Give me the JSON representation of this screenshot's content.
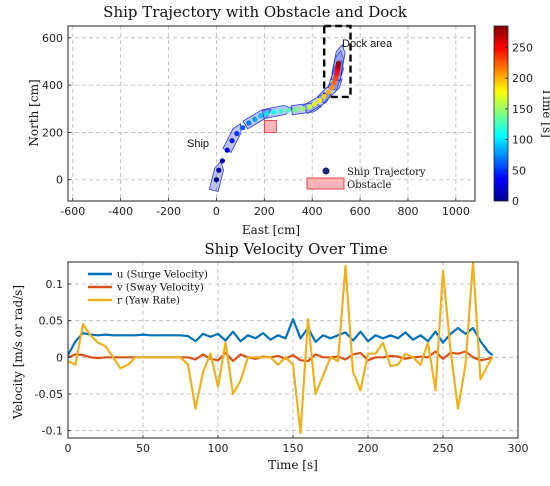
{
  "chart_data": [
    {
      "type": "scatter",
      "title": "Ship Trajectory with Obstacle and Dock",
      "xlabel": "East [cm]",
      "ylabel": "North [cm]",
      "xlim": [
        -620,
        1080
      ],
      "ylim": [
        -90,
        650
      ],
      "xticks": [
        -600,
        -400,
        -200,
        0,
        200,
        400,
        600,
        800,
        1000
      ],
      "yticks": [
        0,
        200,
        400,
        600
      ],
      "grid": true,
      "legend_position": "bottom-right",
      "legend": {
        "trajectory": "Ship Trajectory",
        "obstacle": "Obstacle"
      },
      "colorbar": {
        "label": "Time [s]",
        "range": [
          0,
          285
        ],
        "ticks": [
          0,
          50,
          100,
          150,
          200,
          250
        ]
      },
      "annotations": {
        "ship": "Ship",
        "dock": "Dock area"
      },
      "obstacle": {
        "x": [
          200,
          250
        ],
        "y": [
          200,
          250
        ]
      },
      "dock": {
        "x": [
          450,
          560
        ],
        "y": [
          350,
          660
        ]
      },
      "trajectory": [
        {
          "t": 0,
          "x": 0,
          "y": 0
        },
        {
          "t": 10,
          "x": 10,
          "y": 40
        },
        {
          "t": 20,
          "x": 25,
          "y": 80
        },
        {
          "t": 30,
          "x": 45,
          "y": 125
        },
        {
          "t": 40,
          "x": 65,
          "y": 165
        },
        {
          "t": 50,
          "x": 85,
          "y": 195
        },
        {
          "t": 60,
          "x": 110,
          "y": 220
        },
        {
          "t": 70,
          "x": 135,
          "y": 240
        },
        {
          "t": 80,
          "x": 160,
          "y": 255
        },
        {
          "t": 90,
          "x": 185,
          "y": 270
        },
        {
          "t": 100,
          "x": 210,
          "y": 280
        },
        {
          "t": 110,
          "x": 240,
          "y": 286
        },
        {
          "t": 120,
          "x": 270,
          "y": 290
        },
        {
          "t": 130,
          "x": 300,
          "y": 293
        },
        {
          "t": 140,
          "x": 330,
          "y": 296
        },
        {
          "t": 150,
          "x": 360,
          "y": 300
        },
        {
          "t": 160,
          "x": 390,
          "y": 308
        },
        {
          "t": 170,
          "x": 410,
          "y": 320
        },
        {
          "t": 180,
          "x": 430,
          "y": 335
        },
        {
          "t": 190,
          "x": 450,
          "y": 352
        },
        {
          "t": 200,
          "x": 468,
          "y": 370
        },
        {
          "t": 210,
          "x": 482,
          "y": 390
        },
        {
          "t": 220,
          "x": 492,
          "y": 410
        },
        {
          "t": 230,
          "x": 498,
          "y": 428
        },
        {
          "t": 240,
          "x": 502,
          "y": 445
        },
        {
          "t": 250,
          "x": 505,
          "y": 460
        },
        {
          "t": 260,
          "x": 507,
          "y": 472
        },
        {
          "t": 270,
          "x": 508,
          "y": 482
        },
        {
          "t": 280,
          "x": 510,
          "y": 492
        }
      ],
      "ship_outlines_at_time": [
        0,
        40,
        80,
        110,
        150,
        170,
        200,
        230,
        255,
        280
      ]
    },
    {
      "type": "line",
      "title": "Ship Velocity Over Time",
      "xlabel": "Time [s]",
      "ylabel": "Velocity [m/s or rad/s]",
      "xlim": [
        0,
        300
      ],
      "ylim": [
        -0.11,
        0.13
      ],
      "xticks": [
        0,
        50,
        100,
        150,
        200,
        250,
        300
      ],
      "yticks": [
        -0.1,
        -0.05,
        0,
        0.05,
        0.1
      ],
      "grid": true,
      "legend_position": "top-left",
      "x": [
        0,
        5,
        10,
        15,
        20,
        25,
        30,
        35,
        40,
        45,
        50,
        55,
        60,
        65,
        70,
        75,
        80,
        85,
        90,
        95,
        100,
        105,
        110,
        115,
        120,
        125,
        130,
        135,
        140,
        145,
        150,
        155,
        160,
        165,
        170,
        175,
        180,
        185,
        190,
        195,
        200,
        205,
        210,
        215,
        220,
        225,
        230,
        235,
        240,
        245,
        250,
        255,
        260,
        265,
        270,
        275,
        280,
        283
      ],
      "series": [
        {
          "name": "u (Surge Velocity)",
          "color": "#0072bd",
          "values": [
            0.003,
            0.022,
            0.033,
            0.031,
            0.03,
            0.031,
            0.03,
            0.03,
            0.03,
            0.03,
            0.031,
            0.03,
            0.03,
            0.03,
            0.03,
            0.03,
            0.029,
            0.022,
            0.032,
            0.028,
            0.032,
            0.023,
            0.035,
            0.022,
            0.03,
            0.026,
            0.033,
            0.024,
            0.03,
            0.026,
            0.052,
            0.026,
            0.04,
            0.021,
            0.03,
            0.026,
            0.03,
            0.034,
            0.023,
            0.035,
            0.022,
            0.03,
            0.026,
            0.03,
            0.026,
            0.034,
            0.024,
            0.03,
            0.022,
            0.035,
            0.02,
            0.032,
            0.04,
            0.032,
            0.04,
            0.022,
            0.008,
            0.003
          ]
        },
        {
          "name": "v (Sway Velocity)",
          "color": "#d95319",
          "values": [
            0.0,
            0.004,
            0.003,
            0.0,
            -0.001,
            0.0,
            0.0,
            0.0,
            0.0,
            0.0,
            0.0,
            0.0,
            0.0,
            0.0,
            0.0,
            0.0,
            0.0,
            -0.003,
            0.004,
            -0.002,
            -0.004,
            0.006,
            -0.005,
            0.004,
            0.0,
            -0.002,
            0.001,
            0.0,
            0.002,
            -0.002,
            0.003,
            -0.004,
            -0.005,
            0.004,
            0.0,
            0.0,
            0.001,
            -0.003,
            0.004,
            0.006,
            -0.004,
            0.0,
            0.0,
            0.002,
            0.001,
            -0.002,
            0.0,
            0.001,
            0.0,
            0.008,
            -0.002,
            0.006,
            0.005,
            0.008,
            0.0,
            -0.004,
            -0.002,
            0.0
          ]
        },
        {
          "name": "r (Yaw Rate)",
          "color": "#edb120",
          "values": [
            -0.005,
            -0.01,
            0.045,
            0.03,
            0.02,
            0.015,
            0.0,
            -0.015,
            -0.01,
            0.0,
            0.0,
            0.0,
            0.0,
            0.0,
            0.0,
            0.0,
            -0.01,
            -0.07,
            -0.02,
            0.005,
            -0.04,
            0.02,
            -0.05,
            -0.032,
            0.0,
            0.0,
            0.0,
            0.0,
            -0.01,
            0.0,
            -0.01,
            -0.103,
            0.052,
            -0.05,
            -0.025,
            0.0,
            -0.005,
            0.125,
            -0.02,
            -0.045,
            0.005,
            0.005,
            0.02,
            -0.012,
            -0.01,
            0.005,
            0.0,
            -0.01,
            0.02,
            -0.045,
            0.118,
            0.01,
            -0.07,
            -0.01,
            0.13,
            -0.03,
            -0.01,
            0.0
          ]
        }
      ]
    }
  ]
}
